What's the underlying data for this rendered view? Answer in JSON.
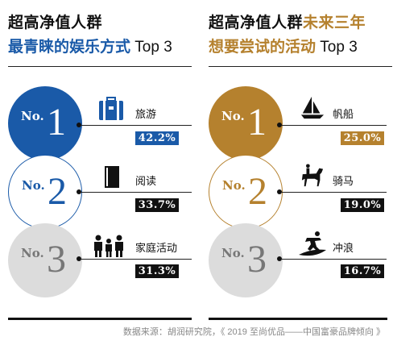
{
  "colors": {
    "blue": "#1a5aa8",
    "gold": "#b5812e",
    "gray": "#dcdcdc",
    "dark": "#111111"
  },
  "left": {
    "title_line1": "超高净值人群",
    "title_line2_highlight": "最青睐的娱乐方式",
    "title_line2_suffix": " Top 3",
    "items": [
      {
        "rank_prefix": "No.",
        "rank": "1",
        "label": "旅游",
        "percent": "42.2%",
        "icon": "luggage-icon"
      },
      {
        "rank_prefix": "No.",
        "rank": "2",
        "label": "阅读",
        "percent": "33.7%",
        "icon": "book-icon"
      },
      {
        "rank_prefix": "No.",
        "rank": "3",
        "label": "家庭活动",
        "percent": "31.3%",
        "icon": "family-icon"
      }
    ]
  },
  "right": {
    "title_line1_dark": "超高净值人群",
    "title_line1_highlight": "未来三年",
    "title_line2_highlight": "想要尝试的活动",
    "title_line2_suffix": " Top 3",
    "items": [
      {
        "rank_prefix": "No.",
        "rank": "1",
        "label": "帆船",
        "percent": "25.0%",
        "icon": "sailboat-icon"
      },
      {
        "rank_prefix": "No.",
        "rank": "2",
        "label": "骑马",
        "percent": "19.0%",
        "icon": "horse-riding-icon"
      },
      {
        "rank_prefix": "No.",
        "rank": "3",
        "label": "冲浪",
        "percent": "16.7%",
        "icon": "surfing-icon"
      }
    ]
  },
  "source": "数据来源：胡润研究院，《 2019 至尚优品——中国富豪品牌倾向 》"
}
